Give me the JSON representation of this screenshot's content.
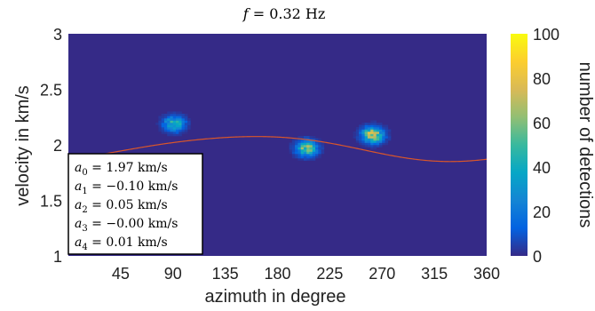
{
  "chart_data": {
    "type": "heatmap",
    "title": "f = 0.32 Hz",
    "xlabel": "azimuth in degree",
    "ylabel": "velocity in km/s",
    "xlim": [
      0,
      360
    ],
    "ylim": [
      1,
      3
    ],
    "xticks": [
      45,
      90,
      135,
      180,
      225,
      270,
      315,
      360
    ],
    "yticks": [
      1,
      1.5,
      2,
      2.5,
      3
    ],
    "colorbar": {
      "label": "number of detections",
      "range": [
        0,
        100
      ],
      "ticks": [
        0,
        20,
        40,
        60,
        80,
        100
      ],
      "colormap": "parula",
      "colors": [
        "#352a87",
        "#0363e1",
        "#1485d4",
        "#06a7c6",
        "#38b99e",
        "#92bf73",
        "#d9ba56",
        "#fcce2e",
        "#f9fb0e"
      ]
    },
    "background_color": "#352a87",
    "fit_curve": {
      "color": "#d9562a",
      "a0": 1.97,
      "a1": -0.1,
      "a2": 0.05,
      "a3": -0.0,
      "a4": 0.01,
      "unit": "km/s"
    },
    "clusters": [
      {
        "azimuth": 91,
        "velocity": 2.19,
        "peak": 45
      },
      {
        "azimuth": 205,
        "velocity": 1.97,
        "peak": 60
      },
      {
        "azimuth": 262,
        "velocity": 2.09,
        "peak": 75
      }
    ],
    "legend_box": {
      "lines": [
        "a_0 = 1.97 km/s",
        "a_1 = −0.10 km/s",
        "a_2 = 0.05 km/s",
        "a_3 = −0.00 km/s",
        "a_4 = 0.01 km/s"
      ],
      "placement": "bottom-left"
    }
  }
}
